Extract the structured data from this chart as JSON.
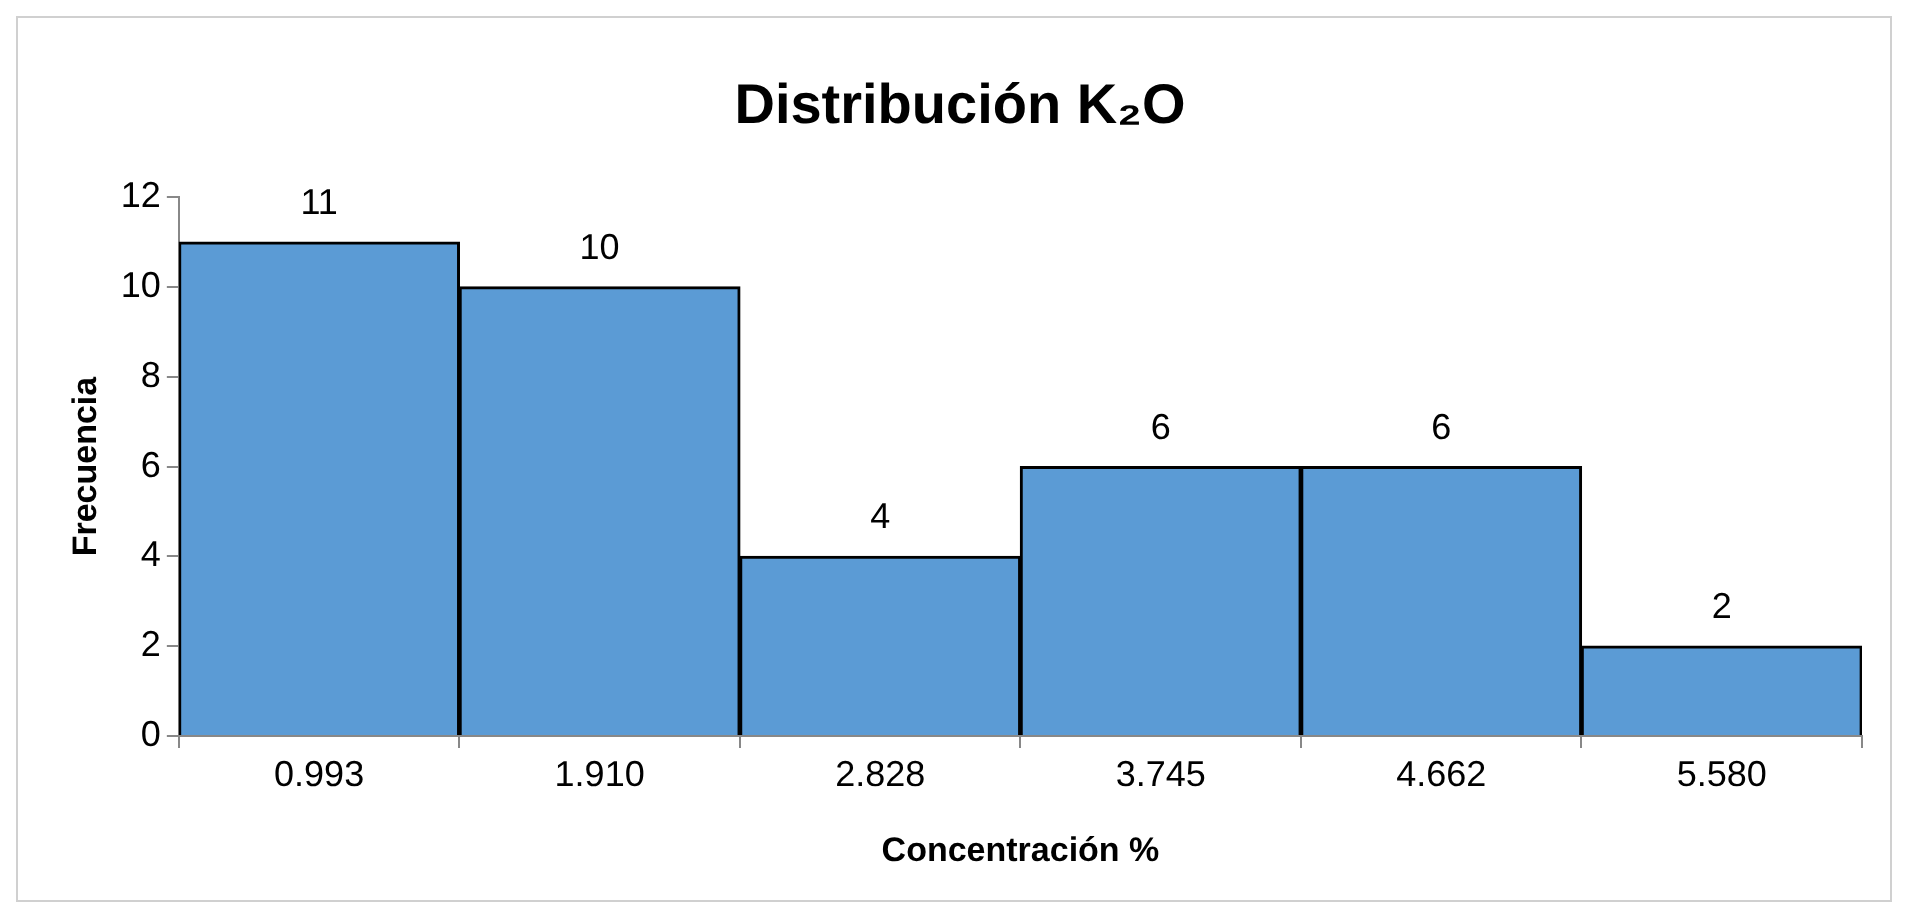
{
  "chart_data": {
    "type": "bar",
    "title": "Distribución K₂O",
    "xlabel": "Concentración %",
    "ylabel": "Frecuencia",
    "categories": [
      "0.993",
      "1.910",
      "2.828",
      "3.745",
      "4.662",
      "5.580"
    ],
    "values": [
      11,
      10,
      4,
      6,
      6,
      2
    ],
    "color": "#5b9bd5",
    "ylim": [
      0,
      12
    ],
    "yticks": [
      0,
      2,
      4,
      6,
      8,
      10,
      12
    ],
    "data_labels": true
  }
}
